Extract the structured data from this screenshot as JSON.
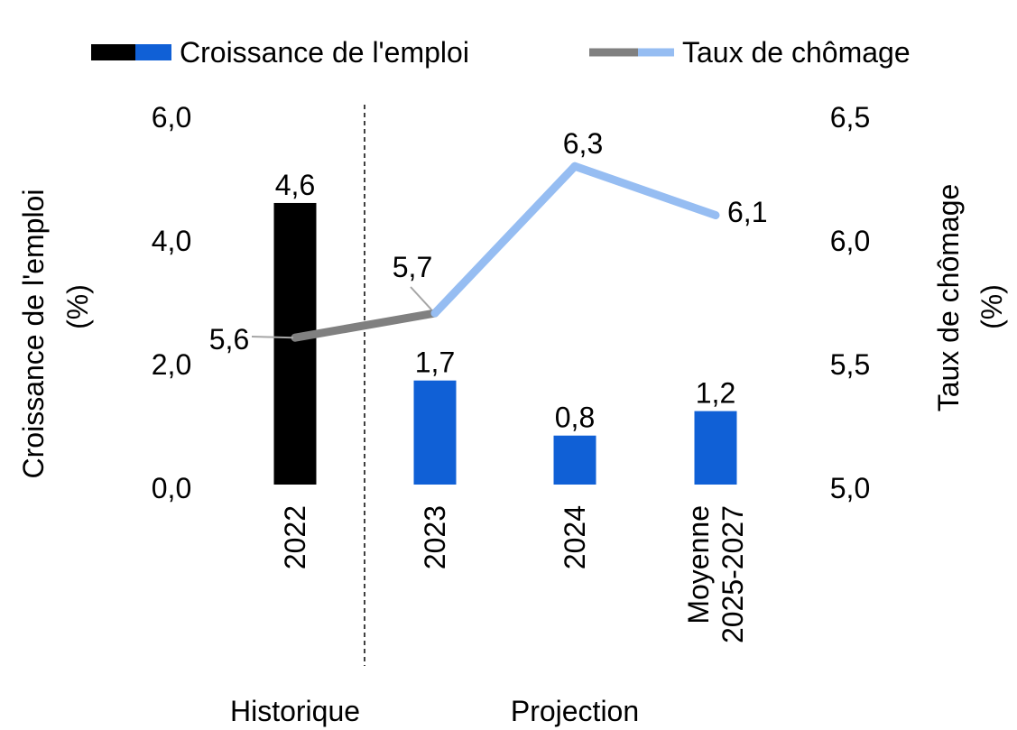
{
  "chart_data": {
    "type": "bar",
    "categories": [
      "2022",
      "2023",
      "2024",
      "Moyenne 2025-2027"
    ],
    "category_lines": [
      [
        "2022"
      ],
      [
        "2023"
      ],
      [
        "2024"
      ],
      [
        "Moyenne",
        "2025-2027"
      ]
    ],
    "series": [
      {
        "name": "Croissance de l'emploi",
        "type": "bar",
        "axis": "left",
        "values": [
          4.6,
          1.7,
          0.8,
          1.2
        ],
        "labels": [
          "4,6",
          "1,7",
          "0,8",
          "1,2"
        ]
      },
      {
        "name": "Taux de chômage",
        "type": "line",
        "axis": "right",
        "values": [
          5.6,
          5.7,
          6.3,
          6.1
        ],
        "labels": [
          "5,6",
          "5,7",
          "6,3",
          "6,1"
        ]
      }
    ],
    "ylabel": "Croissance de l'emploi",
    "ylabel_unit": "(%)",
    "y2label": "Taux de chômage",
    "y2label_unit": "(%)",
    "ylim": [
      0,
      6
    ],
    "y2lim": [
      5,
      6.5
    ],
    "yticks": [
      "0,0",
      "2,0",
      "4,0",
      "6,0"
    ],
    "y2ticks": [
      "5,0",
      "5,5",
      "6,0",
      "6,5"
    ],
    "sections": [
      "Historique",
      "Projection"
    ],
    "legend_position": "top",
    "grid": false,
    "colors": {
      "bar_historical": "#000000",
      "bar_projection": "#1060d6",
      "line_historical": "#808080",
      "line_projection": "#96bdf2"
    }
  }
}
